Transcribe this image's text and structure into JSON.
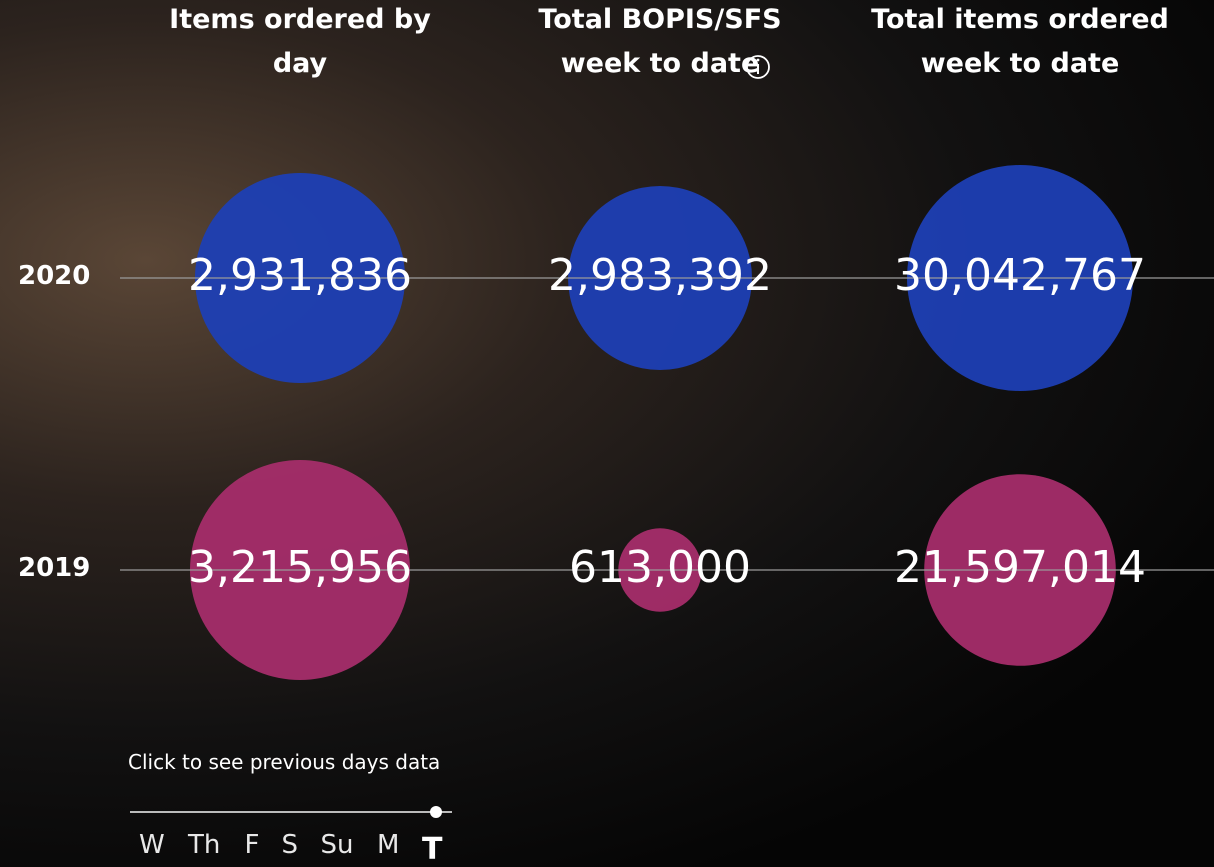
{
  "columns": [
    {
      "title": "Items ordered by day",
      "values": [
        {
          "value": 2931836,
          "label": "2,931,836"
        },
        {
          "value": 3215956,
          "label": "3,215,956"
        }
      ]
    },
    {
      "title": "Total BOPIS/SFS week to date",
      "values": [
        {
          "value": 2983392,
          "label": "2,983,392"
        },
        {
          "value": 613000,
          "label": "613,000"
        }
      ]
    },
    {
      "title": "Total items ordered week to date",
      "values": [
        {
          "value": 30042767,
          "label": "30,042,767"
        },
        {
          "value": 21597014,
          "label": "21,597,014"
        }
      ]
    }
  ],
  "rows": [
    {
      "label": "2020",
      "color": "#1e3fb4"
    },
    {
      "label": "2019",
      "color": "#a52d6a"
    }
  ],
  "slider": {
    "prompt": "Click to see previous days data",
    "days": [
      "W",
      "Th",
      "F",
      "S",
      "Su",
      "M",
      "T"
    ],
    "selected": 6
  }
}
